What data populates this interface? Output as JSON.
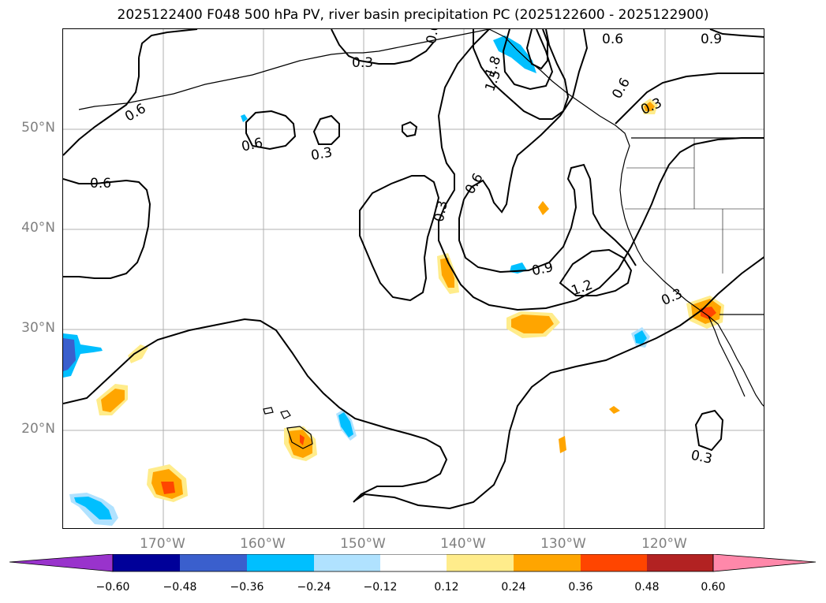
{
  "title": "2025122400 F048 500 hPa PV, river basin precipitation PC (2025122600 - 2025122900)",
  "map": {
    "lat_labels": [
      "50°N",
      "40°N",
      "30°N",
      "20°N"
    ],
    "lon_labels": [
      "170°W",
      "160°W",
      "150°W",
      "140°W",
      "130°W",
      "120°W"
    ],
    "contour_labels": [
      "0.3",
      "0.6",
      "0.6",
      "0.6",
      "0.6",
      "0.3",
      "0.6",
      "0.3",
      "0.6",
      "1.8",
      "1.5",
      "0.3",
      "0.9",
      "0.9",
      "1.2",
      "0.3",
      "0.3",
      "0.6"
    ],
    "gridline_color": "#b0b0b0",
    "contour_color": "#000000"
  },
  "colorbar": {
    "ticks": [
      "−0.60",
      "−0.48",
      "−0.36",
      "−0.24",
      "−0.12",
      "0.12",
      "0.24",
      "0.36",
      "0.48",
      "0.60"
    ],
    "colors": [
      "#9933cc",
      "#000099",
      "#3a5fcd",
      "#00bfff",
      "#b0e2ff",
      "#ffffff",
      "#ffec8b",
      "#ffa500",
      "#ff4500",
      "#b22222",
      "#ff88aa"
    ]
  }
}
